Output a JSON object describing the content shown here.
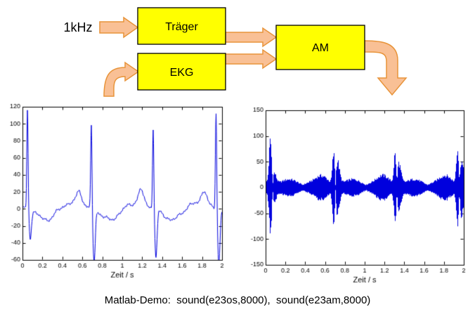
{
  "diagram": {
    "input_label": "1kHz",
    "boxes": [
      {
        "id": "traeger",
        "label": "Träger"
      },
      {
        "id": "ekg",
        "label": "EKG"
      },
      {
        "id": "am",
        "label": "AM"
      }
    ]
  },
  "colors": {
    "box_fill": "#FFFF00",
    "box_border": "#000000",
    "arrow_fill": "#F9C095",
    "arrow_stroke": "#E8943A",
    "plot_line": "#0000DD",
    "axis": "#000000"
  },
  "caption": "Matlab-Demo:  sound(e23os,8000),  sound(e23am,8000)",
  "chart_data": [
    {
      "id": "ekg_plot",
      "type": "line",
      "title": "",
      "xlabel": "Zeit / s",
      "ylabel": "",
      "xlim": [
        0,
        2
      ],
      "ylim": [
        -60,
        120
      ],
      "xticks": [
        0,
        0.2,
        0.4,
        0.6,
        0.8,
        1,
        1.2,
        1.4,
        1.6,
        1.8,
        2
      ],
      "xtick_labels": [
        "0",
        "0.2",
        "0.4",
        "0.6",
        "0.8",
        "1",
        "1.2",
        "1.4",
        "1.6",
        "1.8",
        "2"
      ],
      "yticks": [
        -60,
        -40,
        -20,
        0,
        20,
        40,
        60,
        80,
        100,
        120
      ],
      "ytick_labels": [
        "-60",
        "-40",
        "-20",
        "0",
        "20",
        "40",
        "60",
        "80",
        "100",
        "120"
      ],
      "grid": false,
      "legend": "none",
      "line_color": "#0000DD",
      "signal": {
        "kind": "ecg",
        "beats": [
          {
            "t": 0.05,
            "peak": 118,
            "s": 32
          },
          {
            "t": 0.69,
            "peak": 101,
            "s": 62
          },
          {
            "t": 1.31,
            "peak": 97,
            "s": 57
          },
          {
            "t": 1.94,
            "peak": 117,
            "s": 63
          }
        ],
        "t_bump": 16,
        "after_dip": 13,
        "noise": 2.5
      }
    },
    {
      "id": "am_plot",
      "type": "line",
      "title": "",
      "xlabel": "Zeit / s",
      "ylabel": "",
      "xlim": [
        0,
        2
      ],
      "ylim": [
        -150,
        150
      ],
      "xticks": [
        0,
        0.2,
        0.4,
        0.6,
        0.8,
        1,
        1.2,
        1.4,
        1.6,
        1.8,
        2
      ],
      "xtick_labels": [
        "0",
        "0.2",
        "0.4",
        "0.6",
        "0.8",
        "1",
        "1.2",
        "1.4",
        "1.6",
        "1.8",
        "2"
      ],
      "yticks": [
        -150,
        -100,
        -50,
        0,
        50,
        100,
        150
      ],
      "ytick_labels": [
        "-150",
        "-100",
        "-50",
        "0",
        "50",
        "100",
        "150"
      ],
      "grid": false,
      "legend": "none",
      "line_color": "#0000DD",
      "signal": {
        "kind": "am",
        "base": 6,
        "gain": 0.95,
        "width_scale": 2.2,
        "beats": [
          {
            "t": 0.05,
            "peak": 118,
            "s": 32
          },
          {
            "t": 0.69,
            "peak": 101,
            "s": 62
          },
          {
            "t": 1.31,
            "peak": 97,
            "s": 57
          },
          {
            "t": 1.94,
            "peak": 117,
            "s": 63
          }
        ],
        "t_bump": 16,
        "after_dip": 13,
        "noise": 0
      }
    }
  ]
}
